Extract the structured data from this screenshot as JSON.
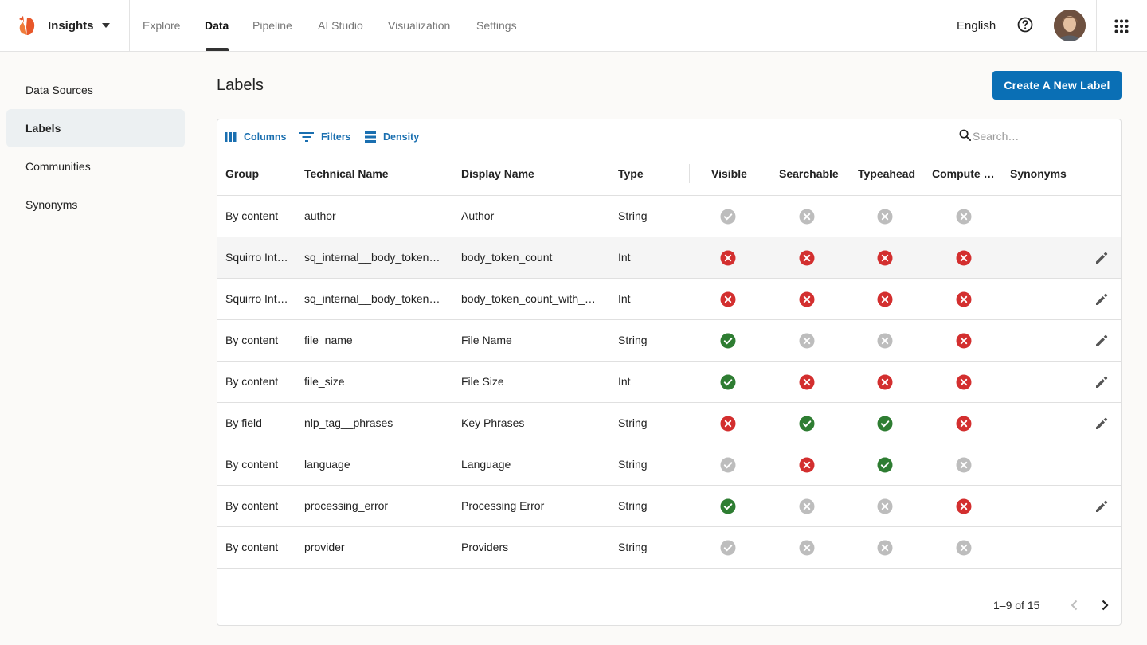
{
  "app": {
    "name": "Insights",
    "language": "English"
  },
  "nav": {
    "items": [
      {
        "label": "Explore",
        "active": false
      },
      {
        "label": "Data",
        "active": true
      },
      {
        "label": "Pipeline",
        "active": false
      },
      {
        "label": "AI Studio",
        "active": false
      },
      {
        "label": "Visualization",
        "active": false
      },
      {
        "label": "Settings",
        "active": false
      }
    ]
  },
  "sidebar": {
    "items": [
      {
        "label": "Data Sources",
        "active": false
      },
      {
        "label": "Labels",
        "active": true
      },
      {
        "label": "Communities",
        "active": false
      },
      {
        "label": "Synonyms",
        "active": false
      }
    ]
  },
  "page": {
    "title": "Labels",
    "create_label": "Create A New Label"
  },
  "toolbar": {
    "columns": "Columns",
    "filters": "Filters",
    "density": "Density",
    "search_placeholder": "Search…"
  },
  "table": {
    "headers": [
      "Group",
      "Technical Name",
      "Display Name",
      "Type",
      "Visible",
      "Searchable",
      "Typeahead",
      "Compute S…",
      "Synonyms"
    ],
    "rows": [
      {
        "group": "By content",
        "technical": "author",
        "display": "Author",
        "type": "String",
        "visible": "na",
        "searchable": "na-x",
        "typeahead": "na-x",
        "compute": "na-x",
        "editable": false,
        "hover": false
      },
      {
        "group": "Squirro Int…",
        "technical": "sq_internal__body_token_…",
        "display": "body_token_count",
        "type": "Int",
        "visible": "no",
        "searchable": "no",
        "typeahead": "no",
        "compute": "no",
        "editable": true,
        "hover": true
      },
      {
        "group": "Squirro Int…",
        "technical": "sq_internal__body_token_…",
        "display": "body_token_count_with_s…",
        "type": "Int",
        "visible": "no",
        "searchable": "no",
        "typeahead": "no",
        "compute": "no",
        "editable": true,
        "hover": false
      },
      {
        "group": "By content",
        "technical": "file_name",
        "display": "File Name",
        "type": "String",
        "visible": "yes",
        "searchable": "na-x",
        "typeahead": "na-x",
        "compute": "no",
        "editable": true,
        "hover": false
      },
      {
        "group": "By content",
        "technical": "file_size",
        "display": "File Size",
        "type": "Int",
        "visible": "yes",
        "searchable": "no",
        "typeahead": "no",
        "compute": "no",
        "editable": true,
        "hover": false
      },
      {
        "group": "By field",
        "technical": "nlp_tag__phrases",
        "display": "Key Phrases",
        "type": "String",
        "visible": "no",
        "searchable": "yes",
        "typeahead": "yes",
        "compute": "no",
        "editable": true,
        "hover": false
      },
      {
        "group": "By content",
        "technical": "language",
        "display": "Language",
        "type": "String",
        "visible": "na",
        "searchable": "no",
        "typeahead": "yes",
        "compute": "na-x",
        "editable": false,
        "hover": false
      },
      {
        "group": "By content",
        "technical": "processing_error",
        "display": "Processing Error",
        "type": "String",
        "visible": "yes",
        "searchable": "na-x",
        "typeahead": "na-x",
        "compute": "no",
        "editable": true,
        "hover": false
      },
      {
        "group": "By content",
        "technical": "provider",
        "display": "Providers",
        "type": "String",
        "visible": "na",
        "searchable": "na-x",
        "typeahead": "na-x",
        "compute": "na-x",
        "editable": false,
        "hover": false
      }
    ]
  },
  "pagination": {
    "range": "1–9 of 15"
  },
  "colors": {
    "primary": "#0a6fb5",
    "success": "#2e7d32",
    "error": "#d32f2f",
    "disabled": "#bdbdbd"
  },
  "icons": {
    "logo": "squirrel-logo-icon",
    "caret": "caret-down-icon",
    "help": "help-circle-icon",
    "apps": "apps-grid-icon",
    "columns": "columns-icon",
    "filters": "filter-icon",
    "density": "density-icon",
    "search": "search-icon",
    "edit": "pencil-icon",
    "prev": "chevron-left-icon",
    "next": "chevron-right-icon"
  }
}
